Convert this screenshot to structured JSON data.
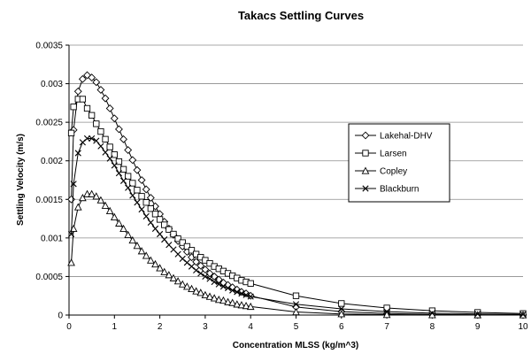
{
  "chart_data": {
    "type": "line",
    "title": "Takacs Settling Curves",
    "xlabel": "Concentration MLSS (kg/m^3)",
    "ylabel": "Settling Velocity (m/s)",
    "xlim": [
      0,
      10
    ],
    "ylim": [
      0,
      0.0035
    ],
    "x_ticks": [
      "0",
      "1",
      "2",
      "3",
      "4",
      "5",
      "6",
      "7",
      "8",
      "9",
      "10"
    ],
    "y_ticks": [
      "0",
      "0.0005",
      "0.001",
      "0.0015",
      "0.002",
      "0.0025",
      "0.003",
      "0.0035"
    ],
    "grid": "horizontal",
    "legend_position": "right",
    "series": [
      {
        "name": "Lakehal-DHV",
        "marker": "diamond",
        "color": "#000000",
        "x": [
          0.05,
          0.1,
          0.2,
          0.3,
          0.4,
          0.5,
          0.6,
          0.7,
          0.8,
          0.9,
          1.0,
          1.1,
          1.2,
          1.3,
          1.4,
          1.5,
          1.6,
          1.7,
          1.8,
          1.9,
          2.0,
          2.1,
          2.2,
          2.3,
          2.4,
          2.5,
          2.6,
          2.7,
          2.8,
          2.9,
          3.0,
          3.1,
          3.2,
          3.3,
          3.4,
          3.5,
          3.6,
          3.7,
          3.8,
          3.9,
          4.0,
          5.0,
          6.0,
          7.0,
          8.0,
          9.0,
          10.0
        ],
        "y": [
          0.0015,
          0.0024,
          0.0029,
          0.00306,
          0.00311,
          0.00308,
          0.00302,
          0.00292,
          0.00281,
          0.00268,
          0.00255,
          0.00241,
          0.00228,
          0.00214,
          0.00201,
          0.00188,
          0.00175,
          0.00163,
          0.00152,
          0.00141,
          0.00131,
          0.00121,
          0.00112,
          0.00104,
          0.00096,
          0.00089,
          0.00082,
          0.00075,
          0.00069,
          0.00064,
          0.00059,
          0.00054,
          0.0005,
          0.00046,
          0.00042,
          0.00039,
          0.00036,
          0.00033,
          0.0003,
          0.00028,
          0.00025,
          0.000105,
          4.5e-05,
          2e-05,
          8e-06,
          3e-06,
          1e-06
        ]
      },
      {
        "name": "Larsen",
        "marker": "square",
        "color": "#000000",
        "x": [
          0.05,
          0.1,
          0.2,
          0.3,
          0.4,
          0.5,
          0.6,
          0.7,
          0.8,
          0.9,
          1.0,
          1.1,
          1.2,
          1.3,
          1.4,
          1.5,
          1.6,
          1.7,
          1.8,
          1.9,
          2.0,
          2.1,
          2.2,
          2.3,
          2.4,
          2.5,
          2.6,
          2.7,
          2.8,
          2.9,
          3.0,
          3.1,
          3.2,
          3.3,
          3.4,
          3.5,
          3.6,
          3.7,
          3.8,
          3.9,
          4.0,
          5.0,
          6.0,
          7.0,
          8.0,
          9.0,
          10.0
        ],
        "y": [
          0.00236,
          0.0027,
          0.0028,
          0.0028,
          0.00268,
          0.00259,
          0.00248,
          0.00238,
          0.00228,
          0.00218,
          0.00208,
          0.00199,
          0.00189,
          0.0018,
          0.00171,
          0.00162,
          0.00154,
          0.00146,
          0.00138,
          0.00131,
          0.00124,
          0.00117,
          0.00111,
          0.00105,
          0.00099,
          0.00094,
          0.00089,
          0.00084,
          0.00079,
          0.00075,
          0.00071,
          0.00067,
          0.00063,
          0.0006,
          0.00057,
          0.00054,
          0.00051,
          0.00048,
          0.00045,
          0.00043,
          0.00041,
          0.00025,
          0.00015,
          9.2e-05,
          5.6e-05,
          3.4e-05,
          2e-05
        ]
      },
      {
        "name": "Copley",
        "marker": "triangle",
        "color": "#000000",
        "x": [
          0.05,
          0.1,
          0.2,
          0.3,
          0.4,
          0.5,
          0.6,
          0.7,
          0.8,
          0.9,
          1.0,
          1.1,
          1.2,
          1.3,
          1.4,
          1.5,
          1.6,
          1.7,
          1.8,
          1.9,
          2.0,
          2.1,
          2.2,
          2.3,
          2.4,
          2.5,
          2.6,
          2.7,
          2.8,
          2.9,
          3.0,
          3.1,
          3.2,
          3.3,
          3.4,
          3.5,
          3.6,
          3.7,
          3.8,
          3.9,
          4.0,
          5.0,
          6.0,
          7.0,
          8.0,
          9.0,
          10.0
        ],
        "y": [
          0.00068,
          0.00112,
          0.0014,
          0.00152,
          0.00157,
          0.00157,
          0.00154,
          0.00149,
          0.00142,
          0.00135,
          0.00127,
          0.00119,
          0.00112,
          0.00104,
          0.00097,
          0.0009,
          0.00083,
          0.00077,
          0.00071,
          0.00066,
          0.00061,
          0.00056,
          0.00052,
          0.00048,
          0.00044,
          0.0004,
          0.00037,
          0.00034,
          0.00031,
          0.00029,
          0.00026,
          0.00024,
          0.00022,
          0.0002,
          0.00019,
          0.00017,
          0.00016,
          0.00014,
          0.00013,
          0.00012,
          0.00011,
          4e-05,
          1.4e-05,
          5e-06,
          2e-06,
          1e-06,
          3e-07
        ]
      },
      {
        "name": "Blackburn",
        "marker": "x",
        "color": "#000000",
        "x": [
          0.05,
          0.1,
          0.2,
          0.3,
          0.4,
          0.5,
          0.6,
          0.7,
          0.8,
          0.9,
          1.0,
          1.1,
          1.2,
          1.3,
          1.4,
          1.5,
          1.6,
          1.7,
          1.8,
          1.9,
          2.0,
          2.1,
          2.2,
          2.3,
          2.4,
          2.5,
          2.6,
          2.7,
          2.8,
          2.9,
          3.0,
          3.1,
          3.2,
          3.3,
          3.4,
          3.5,
          3.6,
          3.7,
          3.8,
          3.9,
          4.0,
          5.0,
          6.0,
          7.0,
          8.0,
          9.0,
          10.0
        ],
        "y": [
          0.00105,
          0.0017,
          0.0021,
          0.00224,
          0.00229,
          0.00229,
          0.00226,
          0.00219,
          0.00211,
          0.00203,
          0.00194,
          0.00184,
          0.00174,
          0.00165,
          0.00155,
          0.00146,
          0.00137,
          0.00128,
          0.0012,
          0.00112,
          0.00105,
          0.00098,
          0.00091,
          0.00085,
          0.00079,
          0.00073,
          0.00068,
          0.00063,
          0.00058,
          0.00054,
          0.0005,
          0.00047,
          0.00043,
          0.0004,
          0.00037,
          0.00035,
          0.00032,
          0.0003,
          0.00028,
          0.00026,
          0.00024,
          0.00014,
          8e-05,
          4.5e-05,
          2.5e-05,
          1.4e-05,
          8e-06
        ]
      }
    ]
  }
}
